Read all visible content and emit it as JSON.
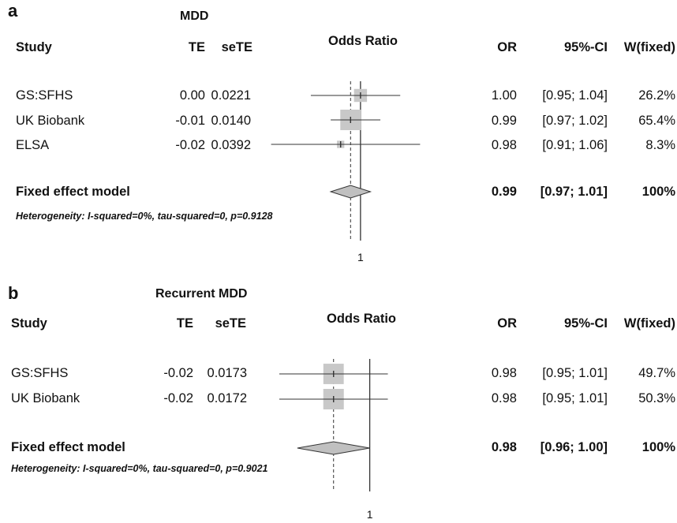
{
  "chart_data": [
    {
      "type": "forest",
      "panel_letter": "a",
      "title": "MDD",
      "header": {
        "study": "Study",
        "te": "TE",
        "sete": "seTE",
        "plot": "Odds Ratio",
        "or": "OR",
        "ci": "95%-CI",
        "weight": "W(fixed)"
      },
      "studies": [
        {
          "name": "GS:SFHS",
          "te": "0.00",
          "sete": "0.0221",
          "or": 1.0,
          "ci_low": 0.95,
          "ci_high": 1.04,
          "or_text": "1.00",
          "ci_text": "[0.95; 1.04]",
          "weight": 26.2,
          "weight_text": "26.2%"
        },
        {
          "name": "UK Biobank",
          "te": "-0.01",
          "sete": "0.0140",
          "or": 0.99,
          "ci_low": 0.97,
          "ci_high": 1.02,
          "or_text": "0.99",
          "ci_text": "[0.97; 1.02]",
          "weight": 65.4,
          "weight_text": "65.4%"
        },
        {
          "name": "ELSA",
          "te": "-0.02",
          "sete": "0.0392",
          "or": 0.98,
          "ci_low": 0.91,
          "ci_high": 1.06,
          "or_text": "0.98",
          "ci_text": "[0.91; 1.06]",
          "weight": 8.3,
          "weight_text": "8.3%"
        }
      ],
      "pooled": {
        "name": "Fixed effect model",
        "or": 0.99,
        "ci_low": 0.97,
        "ci_high": 1.01,
        "or_text": "0.99",
        "ci_text": "[0.97; 1.01]",
        "weight_text": "100%"
      },
      "heterogeneity": "Heterogeneity: I-squared=0%, tau-squared=0, p=0.9128",
      "axis": {
        "reference": 1,
        "xlim": [
          0.9,
          1.07
        ],
        "tick_label": "1"
      }
    },
    {
      "type": "forest",
      "panel_letter": "b",
      "title": "Recurrent MDD",
      "header": {
        "study": "Study",
        "te": "TE",
        "sete": "seTE",
        "plot": "Odds Ratio",
        "or": "OR",
        "ci": "95%-CI",
        "weight": "W(fixed)"
      },
      "studies": [
        {
          "name": "GS:SFHS",
          "te": "-0.02",
          "sete": "0.0173",
          "or": 0.98,
          "ci_low": 0.95,
          "ci_high": 1.01,
          "or_text": "0.98",
          "ci_text": "[0.95; 1.01]",
          "weight": 49.7,
          "weight_text": "49.7%"
        },
        {
          "name": "UK Biobank",
          "te": "-0.02",
          "sete": "0.0172",
          "or": 0.98,
          "ci_low": 0.95,
          "ci_high": 1.01,
          "or_text": "0.98",
          "ci_text": "[0.95; 1.01]",
          "weight": 50.3,
          "weight_text": "50.3%"
        }
      ],
      "pooled": {
        "name": "Fixed effect model",
        "or": 0.98,
        "ci_low": 0.96,
        "ci_high": 1.0,
        "or_text": "0.98",
        "ci_text": "[0.96; 1.00]",
        "weight_text": "100%"
      },
      "heterogeneity": "Heterogeneity: I-squared=0%, tau-squared=0, p=0.9021",
      "axis": {
        "reference": 1,
        "xlim": [
          0.94,
          1.015
        ],
        "tick_label": "1"
      }
    }
  ],
  "colors": {
    "box": "#c8c8c8",
    "diamond": "#c0c0c0",
    "line": "#333333"
  }
}
